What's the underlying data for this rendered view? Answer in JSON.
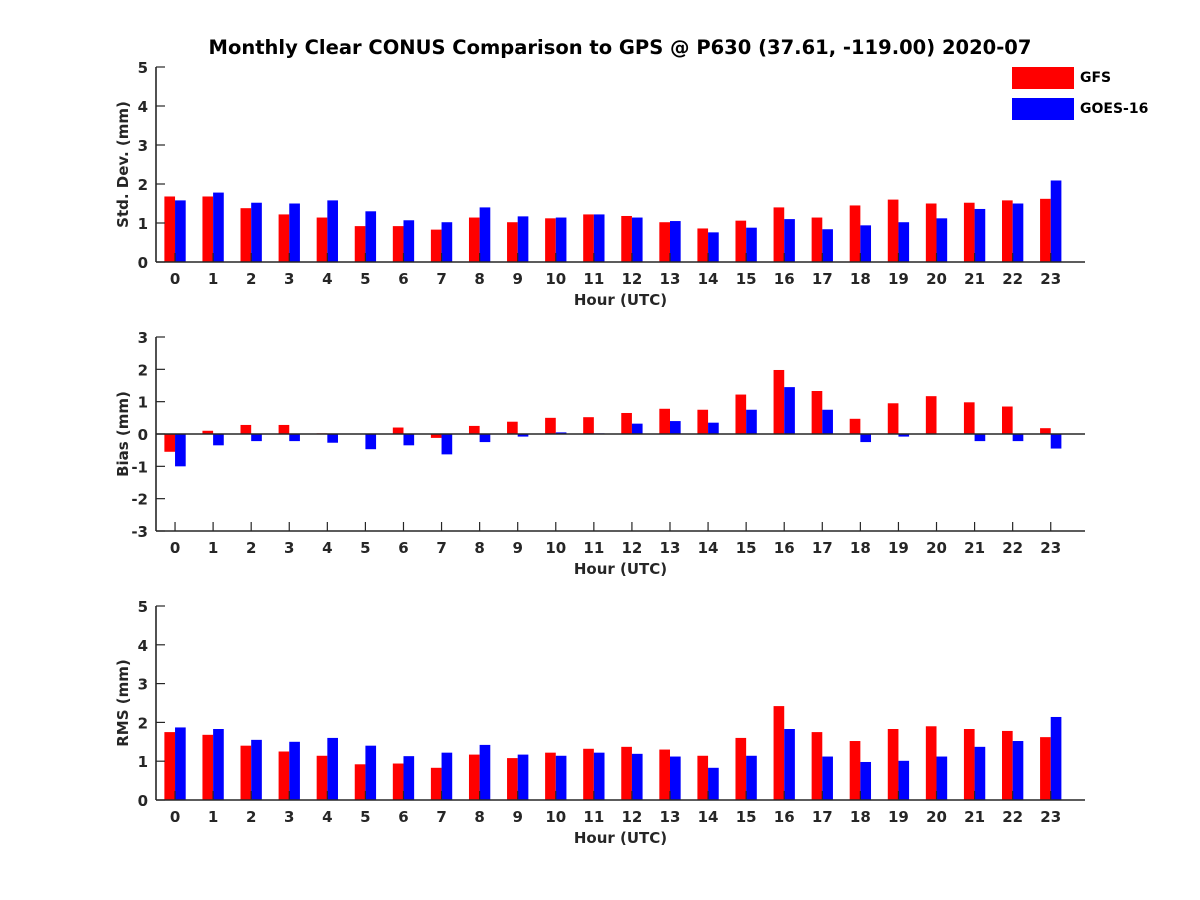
{
  "chart_data": {
    "type": "bar",
    "title": "Monthly Clear CONUS Comparison to GPS @ P630 (37.61, -119.00) 2020-07",
    "series_names": [
      "GFS",
      "GOES-16"
    ],
    "colors": {
      "GFS": "#ff0000",
      "GOES-16": "#0000ff",
      "axis": "#262626"
    },
    "legend_position": "top-right",
    "categories": [
      "0",
      "1",
      "2",
      "3",
      "4",
      "5",
      "6",
      "7",
      "8",
      "9",
      "10",
      "11",
      "12",
      "13",
      "14",
      "15",
      "16",
      "17",
      "18",
      "19",
      "20",
      "21",
      "22",
      "23"
    ],
    "panels": [
      {
        "ylabel": "Std. Dev. (mm)",
        "xlabel": "Hour (UTC)",
        "ylim": [
          0,
          5
        ],
        "yticks": [
          "0",
          "1",
          "2",
          "3",
          "4",
          "5"
        ],
        "series": [
          {
            "name": "GFS",
            "values": [
              1.68,
              1.68,
              1.38,
              1.22,
              1.14,
              0.92,
              0.92,
              0.83,
              1.14,
              1.02,
              1.12,
              1.22,
              1.18,
              1.02,
              0.86,
              1.06,
              1.4,
              1.14,
              1.45,
              1.6,
              1.5,
              1.52,
              1.58,
              1.62
            ]
          },
          {
            "name": "GOES-16",
            "values": [
              1.58,
              1.78,
              1.52,
              1.5,
              1.58,
              1.3,
              1.07,
              1.02,
              1.4,
              1.17,
              1.14,
              1.22,
              1.14,
              1.05,
              0.76,
              0.88,
              1.1,
              0.84,
              0.94,
              1.02,
              1.12,
              1.36,
              1.5,
              2.09
            ]
          }
        ]
      },
      {
        "ylabel": "Bias (mm)",
        "xlabel": "Hour (UTC)",
        "ylim": [
          -3,
          3
        ],
        "yticks": [
          "-3",
          "-2",
          "-1",
          "0",
          "1",
          "2",
          "3"
        ],
        "series": [
          {
            "name": "GFS",
            "values": [
              -0.55,
              0.1,
              0.28,
              0.28,
              0.02,
              0.0,
              0.2,
              -0.12,
              0.25,
              0.38,
              0.5,
              0.52,
              0.65,
              0.78,
              0.75,
              1.22,
              1.98,
              1.33,
              0.47,
              0.95,
              1.17,
              0.98,
              0.85,
              0.18
            ]
          },
          {
            "name": "GOES-16",
            "values": [
              -1.0,
              -0.35,
              -0.22,
              -0.22,
              -0.27,
              -0.47,
              -0.35,
              -0.63,
              -0.25,
              -0.08,
              0.05,
              0.02,
              0.32,
              0.4,
              0.35,
              0.75,
              1.45,
              0.75,
              -0.25,
              -0.08,
              0.0,
              -0.22,
              -0.22,
              -0.45
            ]
          }
        ]
      },
      {
        "ylabel": "RMS (mm)",
        "xlabel": "Hour (UTC)",
        "ylim": [
          0,
          5
        ],
        "yticks": [
          "0",
          "1",
          "2",
          "3",
          "4",
          "5"
        ],
        "series": [
          {
            "name": "GFS",
            "values": [
              1.75,
              1.68,
              1.4,
              1.25,
              1.14,
              0.92,
              0.94,
              0.83,
              1.17,
              1.08,
              1.22,
              1.32,
              1.37,
              1.3,
              1.14,
              1.6,
              2.42,
              1.75,
              1.52,
              1.83,
              1.9,
              1.83,
              1.78,
              1.62
            ]
          },
          {
            "name": "GOES-16",
            "values": [
              1.87,
              1.83,
              1.55,
              1.5,
              1.6,
              1.4,
              1.13,
              1.22,
              1.42,
              1.17,
              1.14,
              1.22,
              1.19,
              1.12,
              0.83,
              1.14,
              1.83,
              1.12,
              0.98,
              1.01,
              1.12,
              1.37,
              1.52,
              2.14
            ]
          }
        ]
      }
    ]
  }
}
